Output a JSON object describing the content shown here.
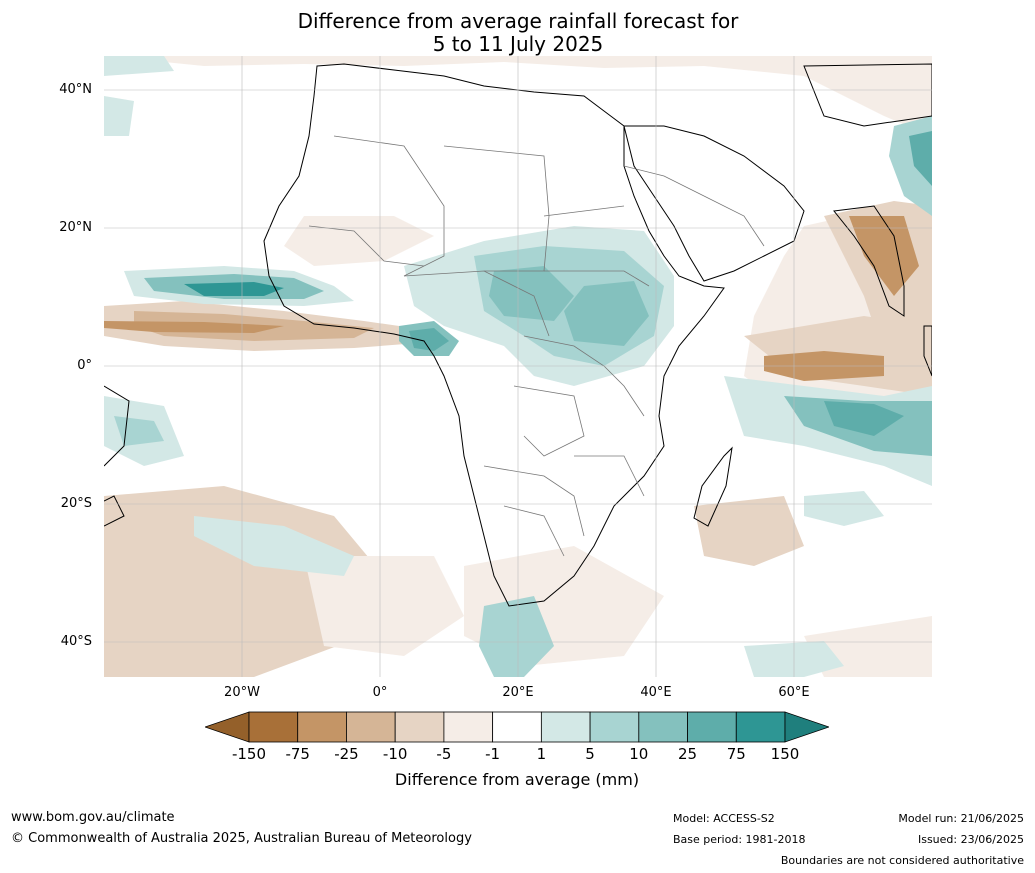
{
  "title": {
    "line1": "Difference from average rainfall forecast for",
    "line2": "5 to 11 July 2025"
  },
  "map": {
    "lat_ticks": [
      "40°N",
      "20°N",
      "0°",
      "20°S",
      "40°S"
    ],
    "lon_ticks": [
      "20°W",
      "0°",
      "20°E",
      "40°E",
      "60°E"
    ],
    "extent": {
      "lon_min": -40,
      "lon_max": 80,
      "lat_min": -45,
      "lat_max": 45
    }
  },
  "colorbar": {
    "ticks": [
      "-150",
      "-75",
      "-25",
      "-10",
      "-5",
      "-1",
      "1",
      "5",
      "10",
      "25",
      "75",
      "150"
    ],
    "colors": [
      "#a87038",
      "#c49566",
      "#d5b596",
      "#e6d4c4",
      "#f5ede7",
      "#ffffff",
      "#d3e8e6",
      "#a8d4d2",
      "#84c1be",
      "#5eadaa",
      "#2e9694"
    ],
    "under_color": "#94602a",
    "over_color": "#1f7f7d",
    "label": "Difference from average (mm)"
  },
  "footer": {
    "url": "www.bom.gov.au/climate",
    "copyright": "© Commonwealth of Australia 2025, Australian Bureau of Meteorology",
    "model": "Model: ACCESS-S2",
    "base_period": "Base period: 1981-2018",
    "model_run": "Model run: 21/06/2025",
    "issued": "Issued: 23/06/2025",
    "disclaimer": "Boundaries are not considered authoritative"
  }
}
